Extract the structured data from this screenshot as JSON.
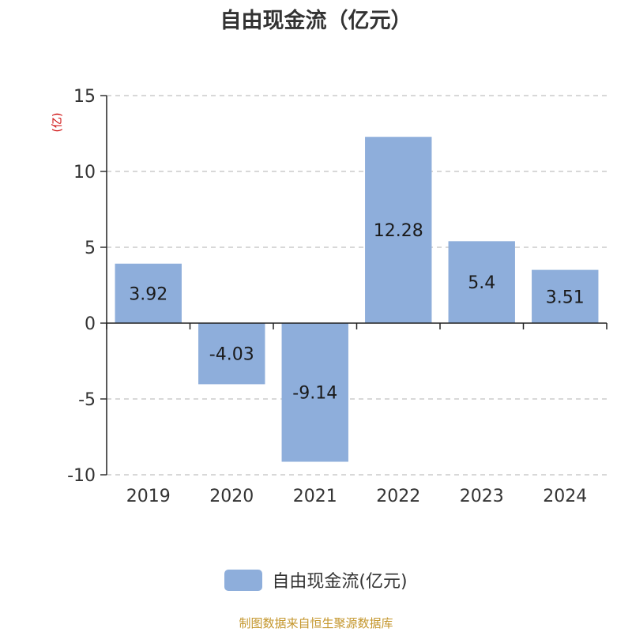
{
  "chart_data": {
    "type": "bar",
    "title": "自由现金流（亿元）",
    "ylabel": "(亿)",
    "categories": [
      "2019",
      "2020",
      "2021",
      "2022",
      "2023",
      "2024"
    ],
    "series": [
      {
        "name": "自由现金流(亿元)",
        "values": [
          3.92,
          -4.03,
          -9.14,
          12.28,
          5.4,
          3.51
        ]
      }
    ],
    "data_labels": [
      "3.92",
      "-4.03",
      "-9.14",
      "12.28",
      "5.4",
      "3.51"
    ],
    "ylim": [
      -10,
      15
    ],
    "yticks": [
      15,
      10,
      5,
      0,
      -5,
      -10
    ],
    "grid": true,
    "legend_position": "bottom"
  },
  "source_note": "制图数据来自恒生聚源数据库",
  "colors": {
    "bar": "#8eaedb",
    "title": "#333333",
    "axis_text": "#333333",
    "grid": "#cccccc",
    "unit_label": "#cc0000",
    "source_note": "#c4962c"
  }
}
